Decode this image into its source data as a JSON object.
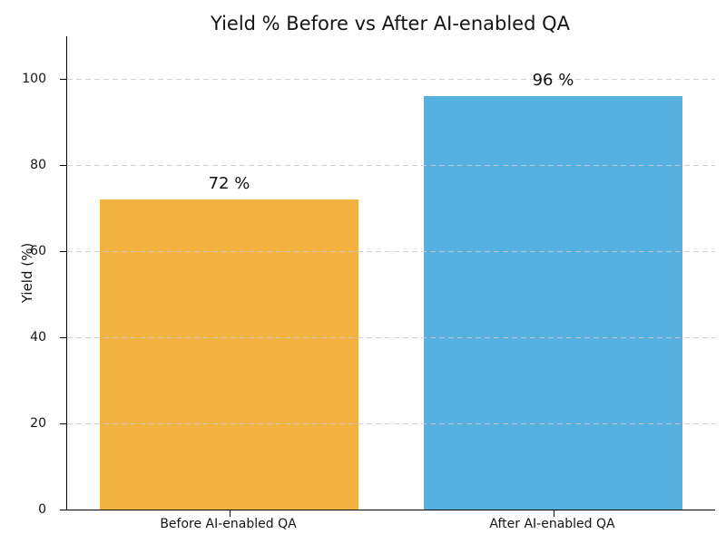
{
  "title": "Yield % Before vs After AI-enabled QA",
  "axes": {
    "ylabel": "Yield (%)",
    "xlabel": ""
  },
  "colors": {
    "bar_before": "#F2B342",
    "bar_after": "#56B1E0",
    "grid": "#c9c9c9",
    "axis": "#000000",
    "text": "#141414",
    "background": "#ffffff"
  },
  "chart_data": {
    "type": "bar",
    "title": "Yield % Before vs After AI-enabled QA",
    "categories": [
      "Before AI-enabled QA",
      "After AI-enabled QA"
    ],
    "values": [
      72,
      96
    ],
    "value_labels": [
      "72 %",
      "96 %"
    ],
    "bar_colors": [
      "#F2B342",
      "#56B1E0"
    ],
    "xlabel": "",
    "ylabel": "Yield (%)",
    "ylim": [
      0,
      110
    ],
    "yticks": [
      0,
      20,
      40,
      60,
      80,
      100
    ],
    "bar_width_fraction": 0.8,
    "grid": "horizontal dashed, drawn over bars",
    "legend": "none",
    "spines": "left and bottom only"
  }
}
